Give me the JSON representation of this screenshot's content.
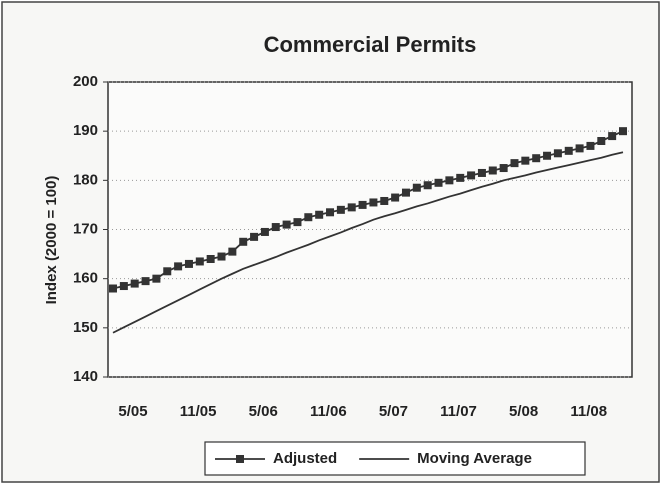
{
  "chart_data": {
    "type": "line",
    "title": "Commercial Permits",
    "y_label": "Index (2000 = 100)",
    "categories": [
      "5/05",
      null,
      null,
      null,
      null,
      null,
      "11/05",
      null,
      null,
      null,
      null,
      null,
      "5/06",
      null,
      null,
      null,
      null,
      null,
      "11/06",
      null,
      null,
      null,
      null,
      null,
      "5/07",
      null,
      null,
      null,
      null,
      null,
      "11/07",
      null,
      null,
      null,
      null,
      null,
      "5/08",
      null,
      null,
      null,
      null,
      null,
      "11/08",
      null,
      null,
      null,
      null,
      null
    ],
    "series": [
      {
        "name": "Adjusted",
        "color": "#333333",
        "marker": "square",
        "values": [
          158,
          158.5,
          159,
          159.5,
          160,
          161.5,
          162.5,
          163,
          163.5,
          164,
          164.5,
          165.5,
          167.5,
          168.5,
          169.5,
          170.5,
          171,
          171.5,
          172.5,
          173,
          173.5,
          174,
          174.5,
          175,
          175.5,
          175.8,
          176.5,
          177.5,
          178.5,
          179,
          179.5,
          180,
          180.5,
          181,
          181.5,
          182,
          182.5,
          183.5,
          184,
          184.5,
          185,
          185.5,
          186,
          186.5,
          187,
          188,
          189,
          190
        ]
      },
      {
        "name": "Moving Average",
        "color": "#333333",
        "marker": "none",
        "values": [
          149,
          150.1,
          151.2,
          152.3,
          153.4,
          154.5,
          155.6,
          156.7,
          157.8,
          158.9,
          160,
          161,
          162,
          162.8,
          163.6,
          164.4,
          165.3,
          166.1,
          166.9,
          167.8,
          168.6,
          169.4,
          170.3,
          171.1,
          172,
          172.7,
          173.3,
          174,
          174.7,
          175.3,
          176,
          176.7,
          177.3,
          178,
          178.7,
          179.3,
          180,
          180.5,
          181,
          181.6,
          182.1,
          182.6,
          183.1,
          183.6,
          184.1,
          184.6,
          185.2,
          185.7
        ]
      }
    ],
    "ylim": [
      140,
      200
    ],
    "yticks": [
      140,
      150,
      160,
      170,
      180,
      190,
      200
    ],
    "grid": true,
    "legend": "bottom"
  }
}
